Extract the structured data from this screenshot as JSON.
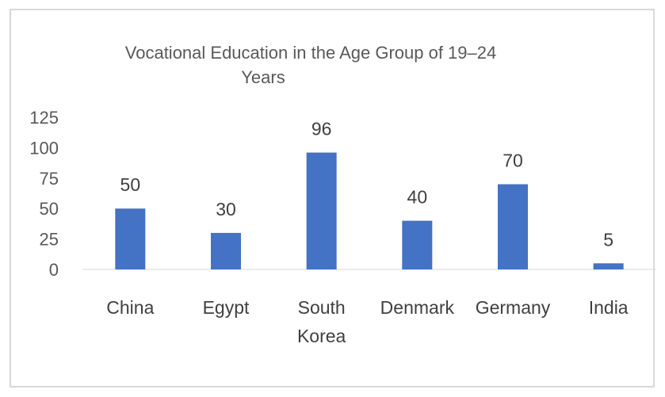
{
  "chart_data": {
    "type": "bar",
    "title_lines": [
      "Vocational Education in the Age Group of 19–24",
      "Years"
    ],
    "categories": [
      [
        "China"
      ],
      [
        "Egypt"
      ],
      [
        "South",
        "Korea"
      ],
      [
        "Denmark"
      ],
      [
        "Germany"
      ],
      [
        "India"
      ]
    ],
    "values": [
      50,
      30,
      96,
      40,
      70,
      5
    ],
    "data_labels": [
      "50",
      "30",
      "96",
      "40",
      "70",
      "5"
    ],
    "ylim": [
      0,
      125
    ],
    "yticks": [
      "0",
      "25",
      "50",
      "75",
      "100",
      "125"
    ],
    "xlabel": "",
    "ylabel": "",
    "grid": false,
    "legend": "none",
    "colors": {
      "bar": "#4472c4",
      "axis": "#d9d9d9"
    }
  }
}
